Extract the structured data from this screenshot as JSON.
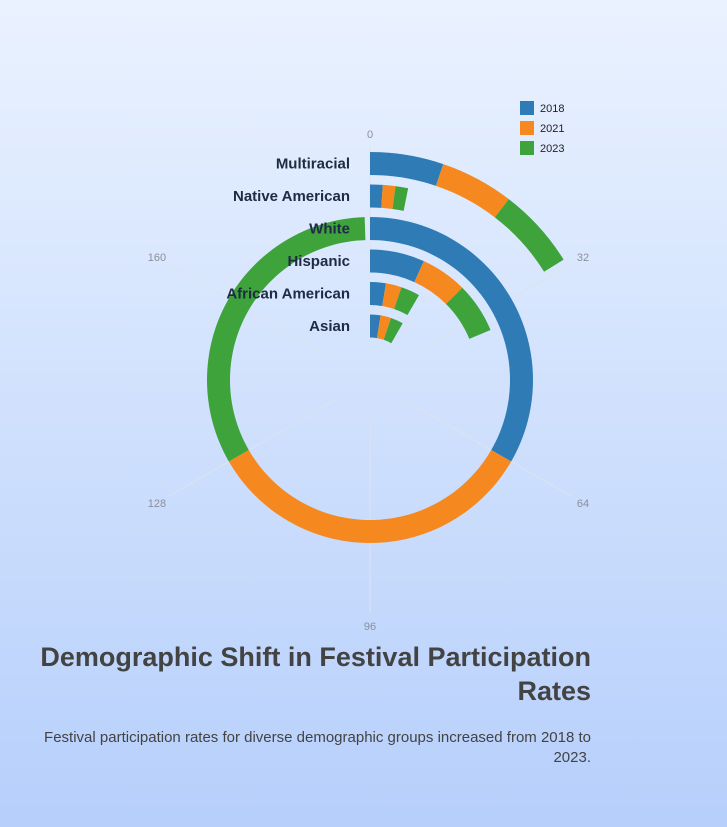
{
  "chart_data": {
    "type": "bar",
    "layout": "radial-stacked",
    "title": "Demographic Shift in Festival Participation Rates",
    "subtitle": "Festival participation rates for diverse demographic groups increased from 2018 to 2023.",
    "categories": [
      "Multiracial",
      "Native American",
      "White",
      "Hispanic",
      "African American",
      "Asian"
    ],
    "series": [
      {
        "name": "2018",
        "color": "#2e7bb6",
        "values": [
          10,
          2,
          64,
          13,
          5,
          5
        ]
      },
      {
        "name": "2021",
        "color": "#f5891f",
        "values": [
          10,
          2,
          64,
          11,
          5,
          5
        ]
      },
      {
        "name": "2023",
        "color": "#3fa33c",
        "values": [
          11,
          2,
          63,
          12,
          6,
          6
        ]
      }
    ],
    "radial_axis": {
      "min": 0,
      "max": 192,
      "ticks": [
        0,
        32,
        64,
        96,
        128,
        160
      ]
    },
    "legend_position": "top-right"
  }
}
